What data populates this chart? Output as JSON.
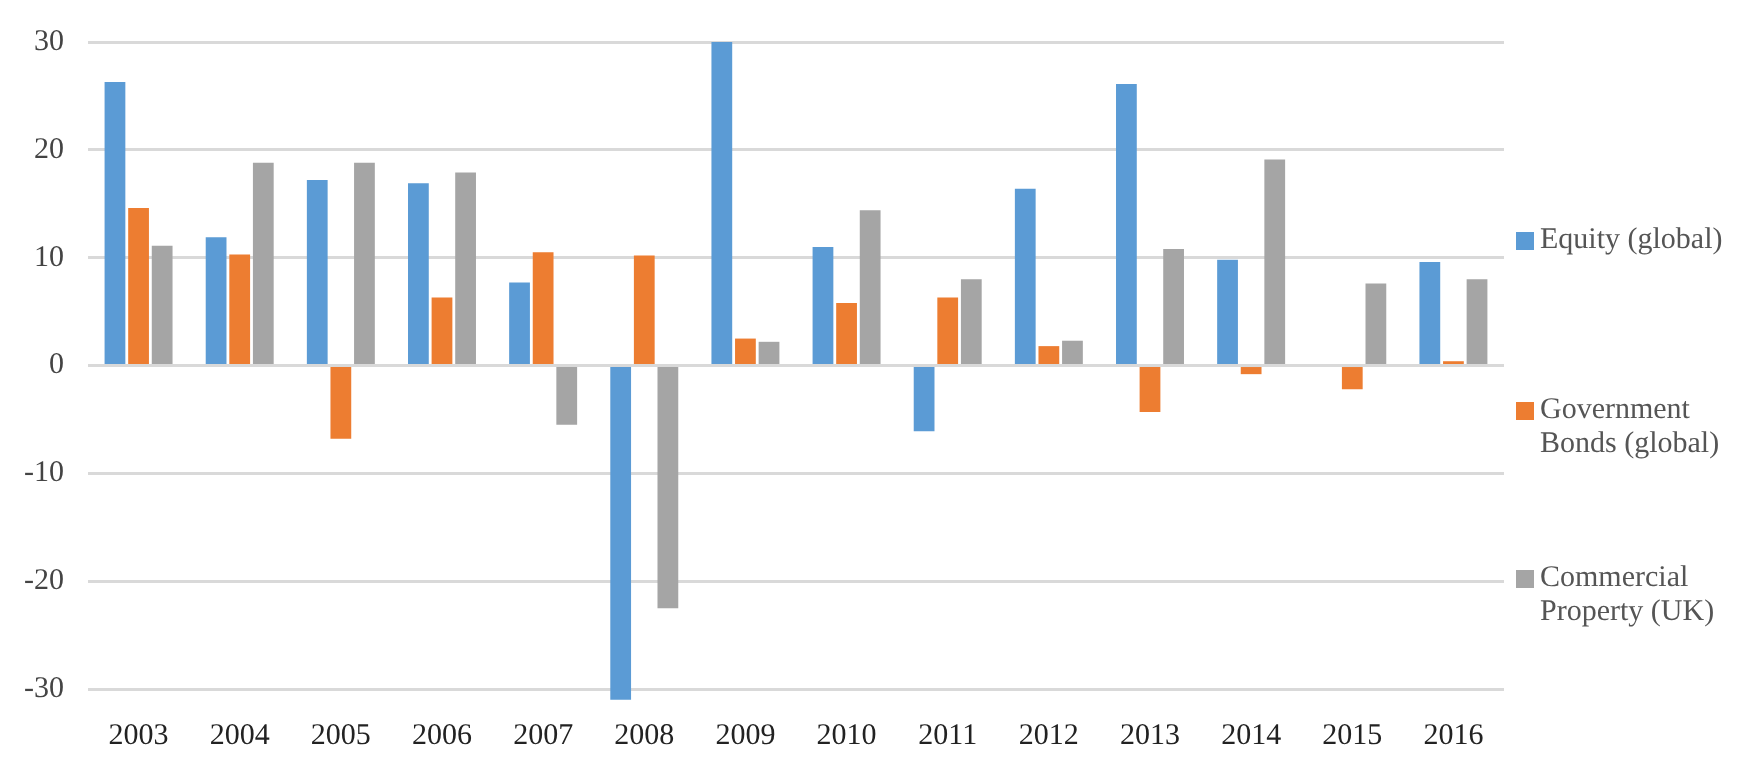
{
  "chart_data": {
    "type": "bar",
    "categories": [
      "2003",
      "2004",
      "2005",
      "2006",
      "2007",
      "2008",
      "2009",
      "2010",
      "2011",
      "2012",
      "2013",
      "2014",
      "2015",
      "2016"
    ],
    "series": [
      {
        "name": "Equity (global)",
        "color": "#5b9bd5",
        "values": [
          26.3,
          11.9,
          17.2,
          16.9,
          7.7,
          -31,
          30,
          11.0,
          -6.1,
          16.4,
          26.1,
          9.8,
          null,
          9.6
        ]
      },
      {
        "name": "Government Bonds (global)",
        "color": "#ed7d31",
        "values": [
          14.6,
          10.3,
          -6.8,
          6.3,
          10.5,
          10.2,
          2.5,
          5.8,
          6.3,
          1.8,
          -4.3,
          -0.8,
          -2.2,
          0.4
        ]
      },
      {
        "name": "Commercial Property (UK)",
        "color": "#a5a5a5",
        "values": [
          11.1,
          18.8,
          18.8,
          17.9,
          -5.5,
          -22.5,
          2.2,
          14.4,
          8.0,
          2.3,
          10.8,
          19.1,
          7.6,
          8.0
        ]
      }
    ],
    "ylim": [
      -31.2,
      30
    ],
    "yticks": [
      -30,
      -20,
      -10,
      0,
      10,
      20,
      30
    ],
    "grid": "y",
    "legend": "right"
  }
}
